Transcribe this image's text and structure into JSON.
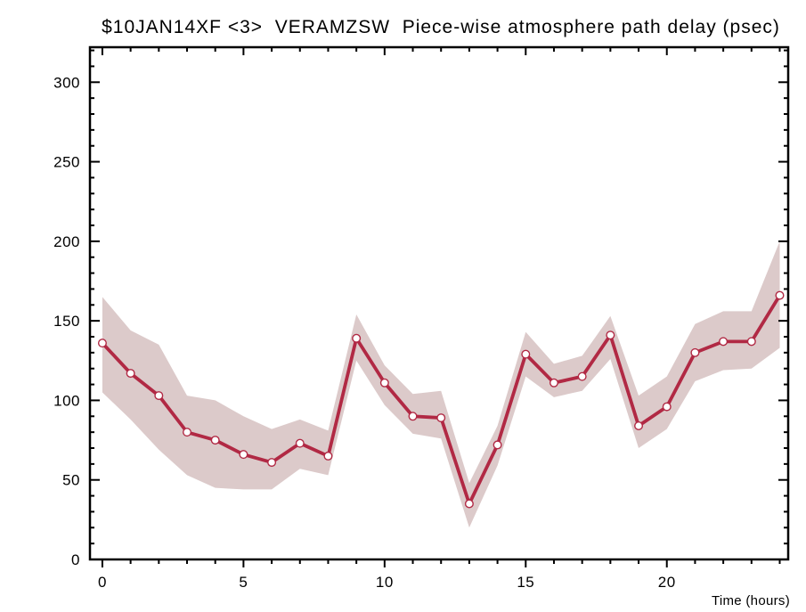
{
  "page": {
    "background": "#ffffff"
  },
  "chart_data": {
    "type": "line",
    "title": "$10JAN14XF <3>  VERAMZSW  Piece-wise atmosphere path delay (psec)",
    "xlabel": "Time (hours)",
    "ylabel": "",
    "legend": "none",
    "grid": false,
    "x": [
      0,
      1,
      2,
      3,
      4,
      5,
      6,
      7,
      8,
      9,
      10,
      11,
      12,
      13,
      14,
      15,
      16,
      17,
      18,
      19,
      20,
      21,
      22,
      23,
      24
    ],
    "series": [
      {
        "name": "piece-wise atmosphere path delay",
        "values": [
          136,
          117,
          103,
          80,
          75,
          66,
          61,
          73,
          65,
          139,
          111,
          90,
          89,
          35,
          72,
          129,
          111,
          115,
          141,
          84,
          96,
          130,
          137,
          137,
          166
        ],
        "band_lower": [
          105,
          88,
          69,
          53,
          45,
          44,
          44,
          57,
          53,
          125,
          97,
          79,
          76,
          20,
          59,
          115,
          102,
          106,
          126,
          70,
          82,
          112,
          119,
          120,
          133
        ],
        "band_upper": [
          165,
          144,
          135,
          103,
          100,
          90,
          82,
          88,
          81,
          154,
          122,
          104,
          106,
          48,
          84,
          143,
          123,
          128,
          153,
          103,
          115,
          148,
          156,
          156,
          200
        ]
      }
    ],
    "x_major_ticks": [
      0,
      5,
      10,
      15,
      20
    ],
    "x_minor_step": 1,
    "x_minor_max": 24,
    "y_major_ticks": [
      0,
      50,
      100,
      150,
      200,
      250,
      300
    ],
    "y_minor_step": 10,
    "xlim": [
      -0.44,
      24.3
    ],
    "ylim": [
      0,
      322
    ],
    "colors": {
      "line": "#b12944",
      "band": "#dccaca",
      "marker_fill": "#ffffff",
      "marker_edge": "#b12944",
      "axis": "#000000",
      "tick_label": "#000000",
      "title": "#9a2038"
    }
  }
}
